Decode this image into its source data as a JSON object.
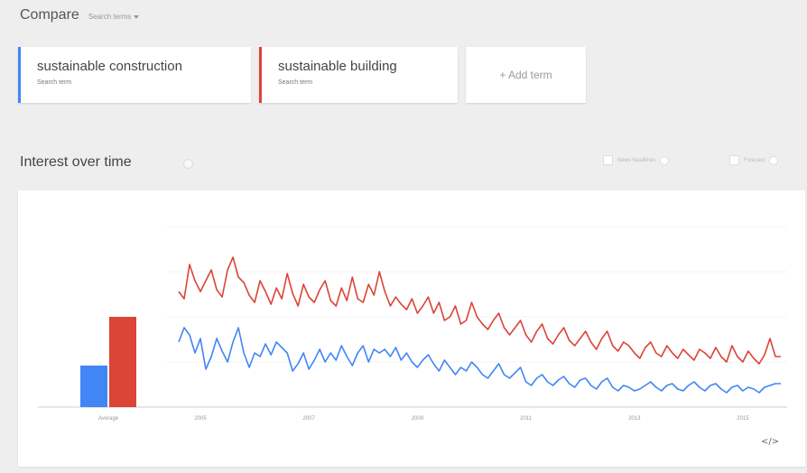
{
  "compare": {
    "title": "Compare",
    "search_terms_label": "Search terms"
  },
  "terms": [
    {
      "name": "sustainable construction",
      "subtitle": "Search term",
      "color": "#4285f4"
    },
    {
      "name": "sustainable building",
      "subtitle": "Search term",
      "color": "#db4437"
    }
  ],
  "add_term_label": "+ Add term",
  "interest": {
    "title": "Interest over time",
    "options": [
      {
        "label": "News headlines"
      },
      {
        "label": "Forecast"
      }
    ]
  },
  "icons": {
    "info": "info-icon",
    "dropdown": "caret-down-icon",
    "embed": "embed-code-icon"
  },
  "chart_data": [
    {
      "type": "bar",
      "categories": [
        "Average"
      ],
      "series": [
        {
          "name": "sustainable construction",
          "values": [
            23
          ],
          "color": "#4285f4"
        },
        {
          "name": "sustainable building",
          "values": [
            50
          ],
          "color": "#db4437"
        }
      ],
      "ylim": [
        0,
        100
      ]
    },
    {
      "type": "line",
      "xlabel": "",
      "ylabel": "",
      "ylim": [
        0,
        100
      ],
      "xlim": [
        2004.6,
        2015.7
      ],
      "x_ticks": [
        {
          "value": 2005.0,
          "label": "2005"
        },
        {
          "value": 2007.0,
          "label": "2007"
        },
        {
          "value": 2009.0,
          "label": "2009"
        },
        {
          "value": 2011.0,
          "label": "2011"
        },
        {
          "value": 2013.0,
          "label": "2013"
        },
        {
          "value": 2015.0,
          "label": "2015"
        }
      ],
      "gridlines_y": [
        25,
        50,
        75,
        100
      ],
      "series": [
        {
          "name": "sustainable building",
          "color": "#db4437",
          "points": [
            [
              2004.6,
              64
            ],
            [
              2004.7,
              60
            ],
            [
              2004.8,
              79
            ],
            [
              2004.9,
              70
            ],
            [
              2005.0,
              64
            ],
            [
              2005.1,
              70
            ],
            [
              2005.2,
              76
            ],
            [
              2005.3,
              65
            ],
            [
              2005.4,
              61
            ],
            [
              2005.5,
              76
            ],
            [
              2005.6,
              83
            ],
            [
              2005.7,
              72
            ],
            [
              2005.8,
              69
            ],
            [
              2005.9,
              62
            ],
            [
              2006.0,
              58
            ],
            [
              2006.1,
              70
            ],
            [
              2006.2,
              64
            ],
            [
              2006.3,
              57
            ],
            [
              2006.4,
              66
            ],
            [
              2006.5,
              60
            ],
            [
              2006.6,
              74
            ],
            [
              2006.7,
              63
            ],
            [
              2006.8,
              56
            ],
            [
              2006.9,
              68
            ],
            [
              2007.0,
              61
            ],
            [
              2007.1,
              58
            ],
            [
              2007.2,
              65
            ],
            [
              2007.3,
              70
            ],
            [
              2007.4,
              59
            ],
            [
              2007.5,
              56
            ],
            [
              2007.6,
              66
            ],
            [
              2007.7,
              59
            ],
            [
              2007.8,
              72
            ],
            [
              2007.9,
              60
            ],
            [
              2008.0,
              58
            ],
            [
              2008.1,
              68
            ],
            [
              2008.2,
              62
            ],
            [
              2008.3,
              75
            ],
            [
              2008.4,
              64
            ],
            [
              2008.5,
              56
            ],
            [
              2008.6,
              61
            ],
            [
              2008.7,
              57
            ],
            [
              2008.8,
              54
            ],
            [
              2008.9,
              60
            ],
            [
              2009.0,
              52
            ],
            [
              2009.1,
              56
            ],
            [
              2009.2,
              61
            ],
            [
              2009.3,
              52
            ],
            [
              2009.4,
              58
            ],
            [
              2009.5,
              48
            ],
            [
              2009.6,
              50
            ],
            [
              2009.7,
              56
            ],
            [
              2009.8,
              46
            ],
            [
              2009.9,
              48
            ],
            [
              2010.0,
              58
            ],
            [
              2010.1,
              50
            ],
            [
              2010.2,
              46
            ],
            [
              2010.3,
              43
            ],
            [
              2010.4,
              48
            ],
            [
              2010.5,
              52
            ],
            [
              2010.6,
              44
            ],
            [
              2010.7,
              40
            ],
            [
              2010.8,
              44
            ],
            [
              2010.9,
              48
            ],
            [
              2011.0,
              40
            ],
            [
              2011.1,
              36
            ],
            [
              2011.2,
              42
            ],
            [
              2011.3,
              46
            ],
            [
              2011.4,
              38
            ],
            [
              2011.5,
              35
            ],
            [
              2011.6,
              40
            ],
            [
              2011.7,
              44
            ],
            [
              2011.8,
              37
            ],
            [
              2011.9,
              34
            ],
            [
              2012.0,
              38
            ],
            [
              2012.1,
              42
            ],
            [
              2012.2,
              36
            ],
            [
              2012.3,
              32
            ],
            [
              2012.4,
              38
            ],
            [
              2012.5,
              42
            ],
            [
              2012.6,
              34
            ],
            [
              2012.7,
              31
            ],
            [
              2012.8,
              36
            ],
            [
              2012.9,
              34
            ],
            [
              2013.0,
              30
            ],
            [
              2013.1,
              27
            ],
            [
              2013.2,
              33
            ],
            [
              2013.3,
              36
            ],
            [
              2013.4,
              30
            ],
            [
              2013.5,
              28
            ],
            [
              2013.6,
              34
            ],
            [
              2013.7,
              30
            ],
            [
              2013.8,
              27
            ],
            [
              2013.9,
              32
            ],
            [
              2014.0,
              29
            ],
            [
              2014.1,
              26
            ],
            [
              2014.2,
              32
            ],
            [
              2014.3,
              30
            ],
            [
              2014.4,
              27
            ],
            [
              2014.5,
              33
            ],
            [
              2014.6,
              28
            ],
            [
              2014.7,
              25
            ],
            [
              2014.8,
              34
            ],
            [
              2014.9,
              28
            ],
            [
              2015.0,
              25
            ],
            [
              2015.1,
              31
            ],
            [
              2015.2,
              27
            ],
            [
              2015.3,
              24
            ],
            [
              2015.4,
              29
            ],
            [
              2015.5,
              38
            ],
            [
              2015.6,
              28
            ],
            [
              2015.7,
              28
            ]
          ]
        },
        {
          "name": "sustainable construction",
          "color": "#4285f4",
          "points": [
            [
              2004.6,
              36
            ],
            [
              2004.7,
              44
            ],
            [
              2004.8,
              40
            ],
            [
              2004.9,
              30
            ],
            [
              2005.0,
              38
            ],
            [
              2005.1,
              21
            ],
            [
              2005.2,
              28
            ],
            [
              2005.3,
              38
            ],
            [
              2005.4,
              31
            ],
            [
              2005.5,
              25
            ],
            [
              2005.6,
              36
            ],
            [
              2005.7,
              44
            ],
            [
              2005.8,
              30
            ],
            [
              2005.9,
              22
            ],
            [
              2006.0,
              30
            ],
            [
              2006.1,
              28
            ],
            [
              2006.2,
              35
            ],
            [
              2006.3,
              29
            ],
            [
              2006.4,
              36
            ],
            [
              2006.5,
              33
            ],
            [
              2006.6,
              30
            ],
            [
              2006.7,
              20
            ],
            [
              2006.8,
              24
            ],
            [
              2006.9,
              30
            ],
            [
              2007.0,
              21
            ],
            [
              2007.1,
              26
            ],
            [
              2007.2,
              32
            ],
            [
              2007.3,
              25
            ],
            [
              2007.4,
              30
            ],
            [
              2007.5,
              26
            ],
            [
              2007.6,
              34
            ],
            [
              2007.7,
              28
            ],
            [
              2007.8,
              23
            ],
            [
              2007.9,
              30
            ],
            [
              2008.0,
              34
            ],
            [
              2008.1,
              25
            ],
            [
              2008.2,
              32
            ],
            [
              2008.3,
              30
            ],
            [
              2008.4,
              32
            ],
            [
              2008.5,
              28
            ],
            [
              2008.6,
              33
            ],
            [
              2008.7,
              26
            ],
            [
              2008.8,
              30
            ],
            [
              2008.9,
              25
            ],
            [
              2009.0,
              22
            ],
            [
              2009.1,
              26
            ],
            [
              2009.2,
              29
            ],
            [
              2009.3,
              24
            ],
            [
              2009.4,
              20
            ],
            [
              2009.5,
              26
            ],
            [
              2009.6,
              22
            ],
            [
              2009.7,
              18
            ],
            [
              2009.8,
              22
            ],
            [
              2009.9,
              20
            ],
            [
              2010.0,
              25
            ],
            [
              2010.1,
              22
            ],
            [
              2010.2,
              18
            ],
            [
              2010.3,
              16
            ],
            [
              2010.4,
              20
            ],
            [
              2010.5,
              24
            ],
            [
              2010.6,
              18
            ],
            [
              2010.7,
              16
            ],
            [
              2010.8,
              19
            ],
            [
              2010.9,
              22
            ],
            [
              2011.0,
              14
            ],
            [
              2011.1,
              12
            ],
            [
              2011.2,
              16
            ],
            [
              2011.3,
              18
            ],
            [
              2011.4,
              14
            ],
            [
              2011.5,
              12
            ],
            [
              2011.6,
              15
            ],
            [
              2011.7,
              17
            ],
            [
              2011.8,
              13
            ],
            [
              2011.9,
              11
            ],
            [
              2012.0,
              15
            ],
            [
              2012.1,
              16
            ],
            [
              2012.2,
              12
            ],
            [
              2012.3,
              10
            ],
            [
              2012.4,
              14
            ],
            [
              2012.5,
              16
            ],
            [
              2012.6,
              11
            ],
            [
              2012.7,
              9
            ],
            [
              2012.8,
              12
            ],
            [
              2012.9,
              11
            ],
            [
              2013.0,
              9
            ],
            [
              2013.1,
              10
            ],
            [
              2013.2,
              12
            ],
            [
              2013.3,
              14
            ],
            [
              2013.4,
              11
            ],
            [
              2013.5,
              9
            ],
            [
              2013.6,
              12
            ],
            [
              2013.7,
              13
            ],
            [
              2013.8,
              10
            ],
            [
              2013.9,
              9
            ],
            [
              2014.0,
              12
            ],
            [
              2014.1,
              14
            ],
            [
              2014.2,
              11
            ],
            [
              2014.3,
              9
            ],
            [
              2014.4,
              12
            ],
            [
              2014.5,
              13
            ],
            [
              2014.6,
              10
            ],
            [
              2014.7,
              8
            ],
            [
              2014.8,
              11
            ],
            [
              2014.9,
              12
            ],
            [
              2015.0,
              9
            ],
            [
              2015.1,
              11
            ],
            [
              2015.2,
              10
            ],
            [
              2015.3,
              8
            ],
            [
              2015.4,
              11
            ],
            [
              2015.5,
              12
            ],
            [
              2015.6,
              13
            ],
            [
              2015.7,
              13
            ]
          ]
        }
      ]
    }
  ]
}
